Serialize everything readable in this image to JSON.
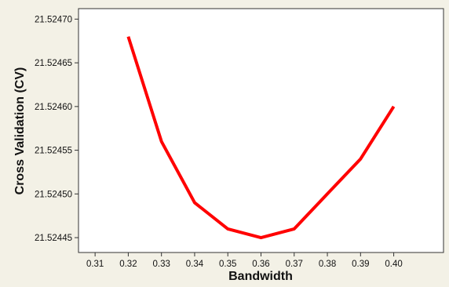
{
  "chart_data": {
    "type": "line",
    "title": "",
    "xlabel": "Bandwidth",
    "ylabel": "Cross Validation (CV)",
    "x": [
      0.32,
      0.33,
      0.34,
      0.35,
      0.36,
      0.37,
      0.38,
      0.39,
      0.4
    ],
    "series": [
      {
        "values": [
          21.52468,
          21.52456,
          21.52449,
          21.52446,
          21.52445,
          21.52446,
          21.5245,
          21.52454,
          21.5246
        ],
        "color": "#ff0000"
      }
    ],
    "xlim": [
      0.305,
      0.415
    ],
    "ylim": [
      21.524433,
      21.524712
    ],
    "xticks": [
      0.31,
      0.32,
      0.33,
      0.34,
      0.35,
      0.36,
      0.37,
      0.38,
      0.39,
      0.4
    ],
    "xtick_labels": [
      "0.31",
      "0.32",
      "0.33",
      "0.34",
      "0.35",
      "0.36",
      "0.37",
      "0.38",
      "0.39",
      "0.40"
    ],
    "yticks": [
      21.52445,
      21.5245,
      21.52455,
      21.5246,
      21.52465,
      21.5247
    ],
    "ytick_labels": [
      "21.52445",
      "21.52450",
      "21.52455",
      "21.52460",
      "21.52465",
      "21.52470"
    ],
    "grid": false,
    "legend": "none",
    "colors": {
      "background": "#f3f1e6",
      "plot_background": "#ffffff",
      "axis": "#333333"
    }
  }
}
